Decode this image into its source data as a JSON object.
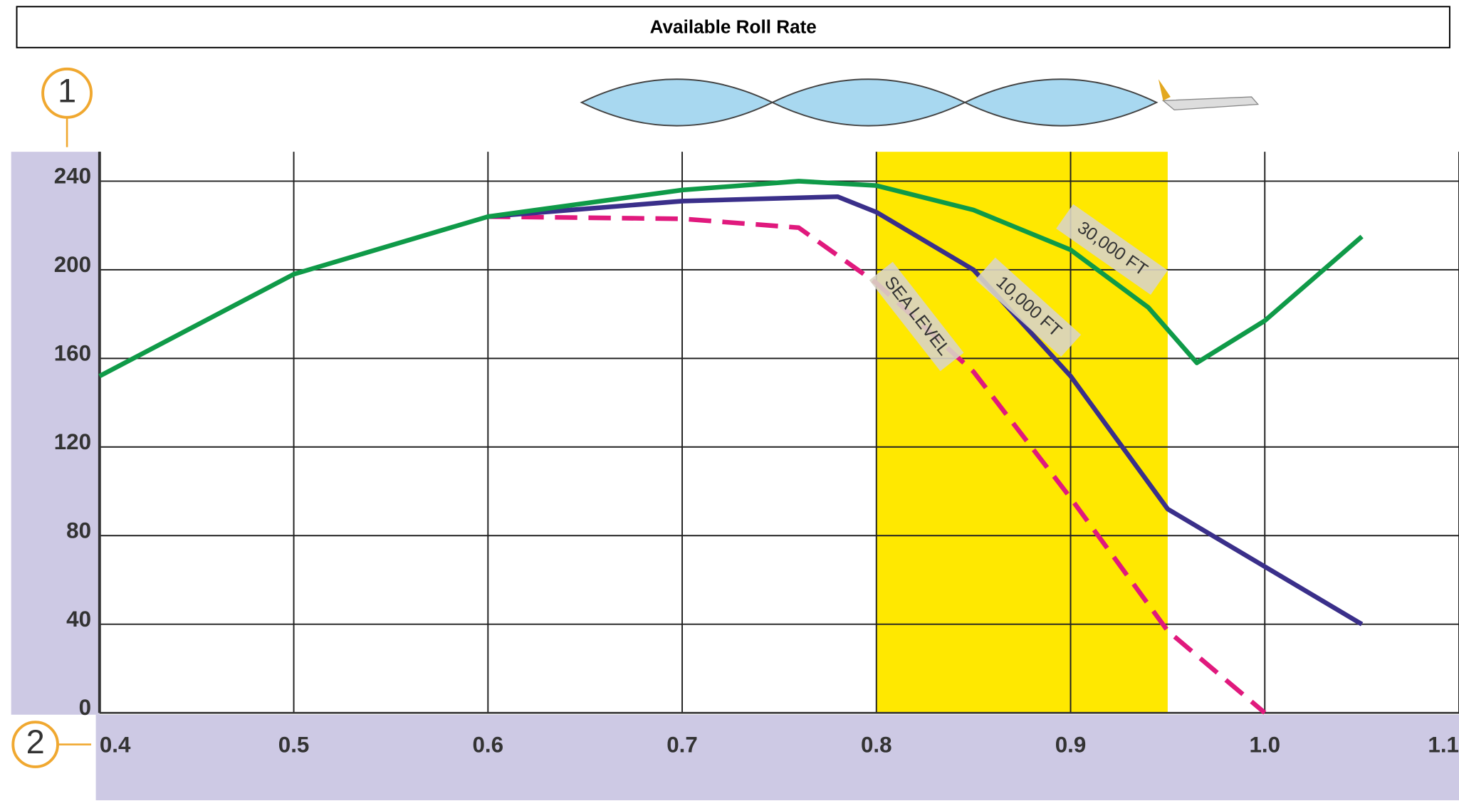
{
  "chart_data": {
    "type": "line",
    "title": "Available Roll Rate",
    "y_marker": "1",
    "x_marker": "2",
    "xlim": [
      0.4,
      1.1
    ],
    "xticks": [
      0.4,
      0.5,
      0.6,
      0.7,
      0.8,
      0.9,
      {
        "value": 1,
        "label": "1.0"
      },
      1.1
    ],
    "ylim": [
      0,
      252
    ],
    "yticks": [
      0,
      40,
      80,
      120,
      160,
      200,
      240
    ],
    "grid": true,
    "highlight": [
      0.8,
      0.95
    ],
    "highlight_color": "#ffe800",
    "series": [
      {
        "name": "SEA LEVEL",
        "color": "#e0197d",
        "dashed": true,
        "x": [
          0.6,
          0.7,
          0.76,
          0.8,
          0.85,
          0.9,
          0.95,
          1.0
        ],
        "values": [
          224,
          223,
          219,
          194,
          154,
          97,
          37,
          0
        ]
      },
      {
        "name": "10,000 FT",
        "color": "#3a2f8a",
        "dashed": false,
        "x": [
          0.6,
          0.7,
          0.78,
          0.8,
          0.85,
          0.9,
          0.95,
          1.0,
          1.05
        ],
        "values": [
          224,
          231,
          233,
          226,
          200,
          152,
          92,
          66,
          40
        ]
      },
      {
        "name": "30,000 FT",
        "color": "#0f9a48",
        "dashed": false,
        "x": [
          0.4,
          0.5,
          0.6,
          0.7,
          0.76,
          0.8,
          0.85,
          0.9,
          0.94,
          0.965,
          1.0,
          1.05
        ],
        "values": [
          152,
          198,
          224,
          236,
          240,
          238,
          227,
          209,
          183,
          158,
          177,
          215
        ]
      }
    ]
  }
}
